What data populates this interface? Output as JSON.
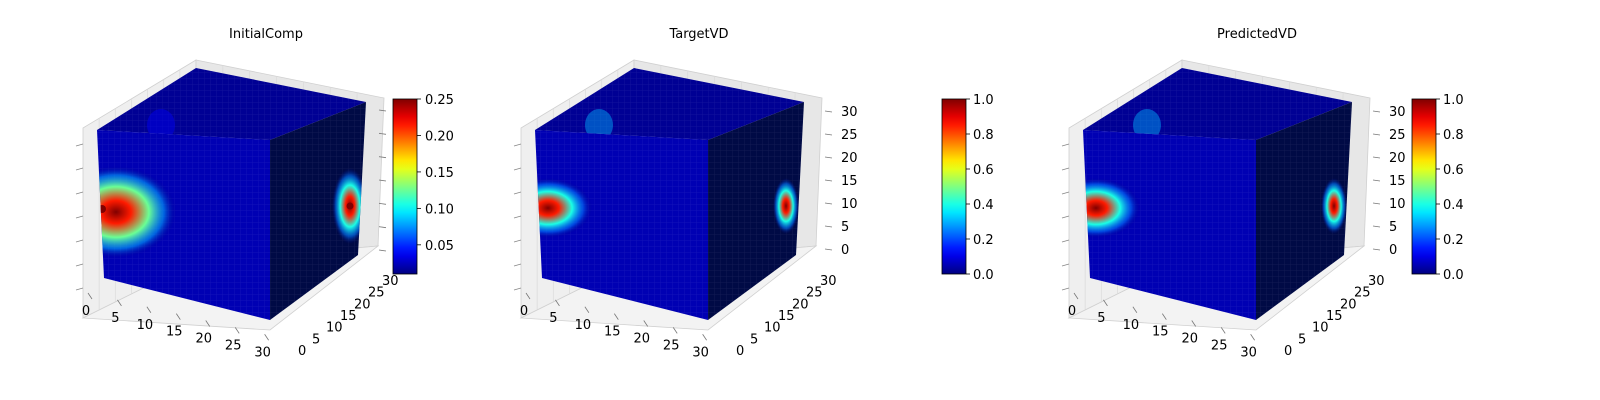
{
  "chart_data": [
    {
      "type": "voxel3d",
      "title": "InitialComp",
      "x_ticks": [
        "0",
        "5",
        "10",
        "15",
        "20",
        "25",
        "30"
      ],
      "y_ticks": [
        "0",
        "5",
        "10",
        "15",
        "20",
        "25",
        "30"
      ],
      "z_ticks": [],
      "colormap": "jet",
      "colorbar": {
        "min": 0.01,
        "max": 0.25,
        "ticks": [
          "0.05",
          "0.10",
          "0.15",
          "0.20",
          "0.25"
        ],
        "tick_values": [
          0.05,
          0.1,
          0.15,
          0.2,
          0.25
        ]
      },
      "front_blob": {
        "peak": 0.25,
        "halo": 0.12
      },
      "side_blob": {
        "peak": 0.25,
        "halo": 0.1
      },
      "top_blob": {
        "peak": 0.03
      },
      "background": 0.0
    },
    {
      "type": "voxel3d",
      "title": "TargetVD",
      "x_ticks": [
        "0",
        "5",
        "10",
        "15",
        "20",
        "25",
        "30"
      ],
      "y_ticks": [
        "0",
        "5",
        "10",
        "15",
        "20",
        "25",
        "30"
      ],
      "z_ticks": [
        "0",
        "5",
        "10",
        "15",
        "20",
        "25",
        "30"
      ],
      "colormap": "jet",
      "colorbar": {
        "min": 0.0,
        "max": 1.0,
        "ticks": [
          "0.0",
          "0.2",
          "0.4",
          "0.6",
          "0.8",
          "1.0"
        ],
        "tick_values": [
          0.0,
          0.2,
          0.4,
          0.6,
          0.8,
          1.0
        ]
      },
      "front_blob": {
        "peak": 1.0,
        "halo": 0.4
      },
      "side_blob": {
        "peak": 1.0,
        "halo": 0.4
      },
      "top_blob": {
        "peak": 0.3
      },
      "background": 0.0
    },
    {
      "type": "voxel3d",
      "title": "PredictedVD",
      "x_ticks": [
        "0",
        "5",
        "10",
        "15",
        "20",
        "25",
        "30"
      ],
      "y_ticks": [
        "0",
        "5",
        "10",
        "15",
        "20",
        "25",
        "30"
      ],
      "z_ticks": [
        "0",
        "5",
        "10",
        "15",
        "20",
        "25",
        "30"
      ],
      "colormap": "jet",
      "colorbar": {
        "min": 0.0,
        "max": 1.0,
        "ticks": [
          "0.0",
          "0.2",
          "0.4",
          "0.6",
          "0.8",
          "1.0"
        ],
        "tick_values": [
          0.0,
          0.2,
          0.4,
          0.6,
          0.8,
          1.0
        ]
      },
      "front_blob": {
        "peak": 1.0,
        "halo": 0.4
      },
      "side_blob": {
        "peak": 1.0,
        "halo": 0.4
      },
      "top_blob": {
        "peak": 0.3
      },
      "background": 0.0
    }
  ]
}
